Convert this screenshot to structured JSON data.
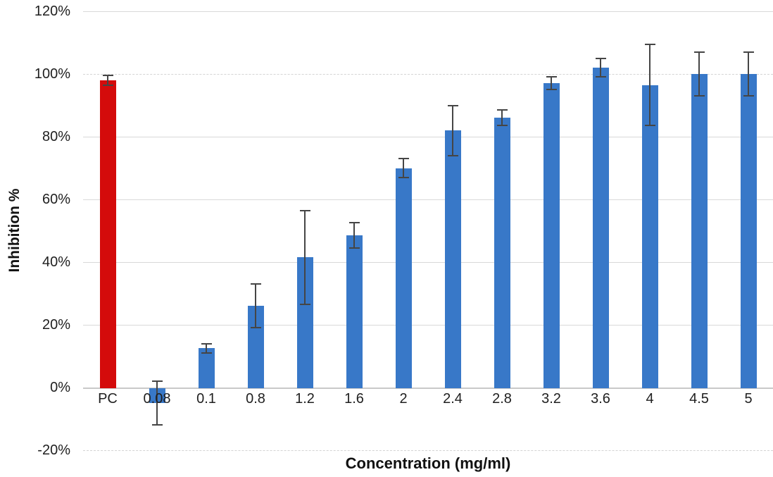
{
  "chart_data": {
    "type": "bar",
    "title": "",
    "xlabel": "Concentration (mg/ml)",
    "ylabel": "Inhibition %",
    "categories": [
      "PC",
      "0.08",
      "0.1",
      "0.8",
      "1.2",
      "1.6",
      "2",
      "2.4",
      "2.8",
      "3.2",
      "3.6",
      "4",
      "4.5",
      "5"
    ],
    "series": [
      {
        "name": "Inhibition %",
        "values": [
          98,
          -5,
          12.5,
          26,
          41.5,
          48.5,
          70,
          82,
          86,
          97,
          102,
          96.5,
          100,
          100
        ],
        "errors": [
          1.5,
          7,
          1.5,
          7,
          15,
          4,
          3,
          8,
          2.5,
          2,
          3,
          13,
          7,
          7
        ]
      }
    ],
    "bar_colors": [
      "#d40b0b",
      "#3878c8",
      "#3878c8",
      "#3878c8",
      "#3878c8",
      "#3878c8",
      "#3878c8",
      "#3878c8",
      "#3878c8",
      "#3878c8",
      "#3878c8",
      "#3878c8",
      "#3878c8",
      "#3878c8"
    ],
    "ylim": [
      -20,
      120
    ],
    "yticks": [
      120,
      100,
      80,
      60,
      40,
      20,
      0,
      -20
    ],
    "ytick_labels": [
      "120%",
      "100%",
      "80%",
      "60%",
      "40%",
      "20%",
      "0%",
      "-20%"
    ],
    "dashed_gridlines": [
      100,
      -20
    ],
    "grid": true,
    "legend": "none",
    "palette": {
      "bar_blue": "#3878c8",
      "bar_red": "#d40b0b",
      "error_bar": "#454545",
      "gridline": "#d9d9d9",
      "axis_line": "#c9c9c9",
      "text": "#1f1f1f"
    }
  }
}
